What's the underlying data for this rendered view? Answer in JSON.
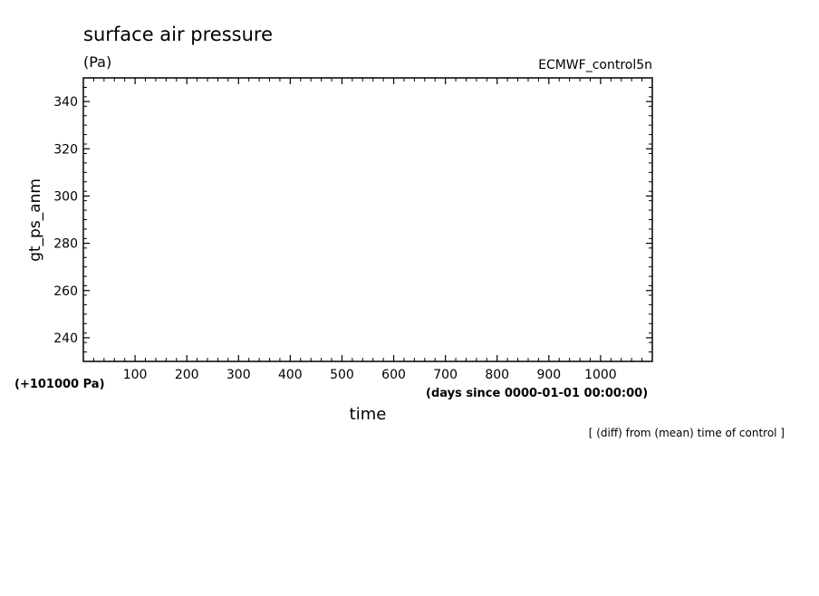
{
  "chart_data": {
    "type": "line",
    "title": "surface air pressure",
    "units": "(Pa)",
    "dataset_label": "ECMWF_control5n",
    "ylabel": "gt_ps_anm",
    "y_offset_label": "(+101000 Pa)",
    "xlabel": "time",
    "x_units_label": "(days since 0000-01-01 00:00:00)",
    "footnote": "[ (diff) from (mean) time of control ]",
    "xlim": [
      0,
      1100
    ],
    "ylim": [
      230,
      350
    ],
    "x_ticks": [
      100,
      200,
      300,
      400,
      500,
      600,
      700,
      800,
      900,
      1000
    ],
    "y_ticks": [
      240,
      260,
      280,
      300,
      320,
      340
    ],
    "x_tick_labels": [
      "100",
      "200",
      "300",
      "400",
      "500",
      "600",
      "700",
      "800",
      "900",
      "1000"
    ],
    "y_tick_labels": [
      "240",
      "260",
      "280",
      "300",
      "320",
      "340"
    ],
    "x_minor_step": 20,
    "y_minor_step": 4,
    "grid": false,
    "series": []
  }
}
